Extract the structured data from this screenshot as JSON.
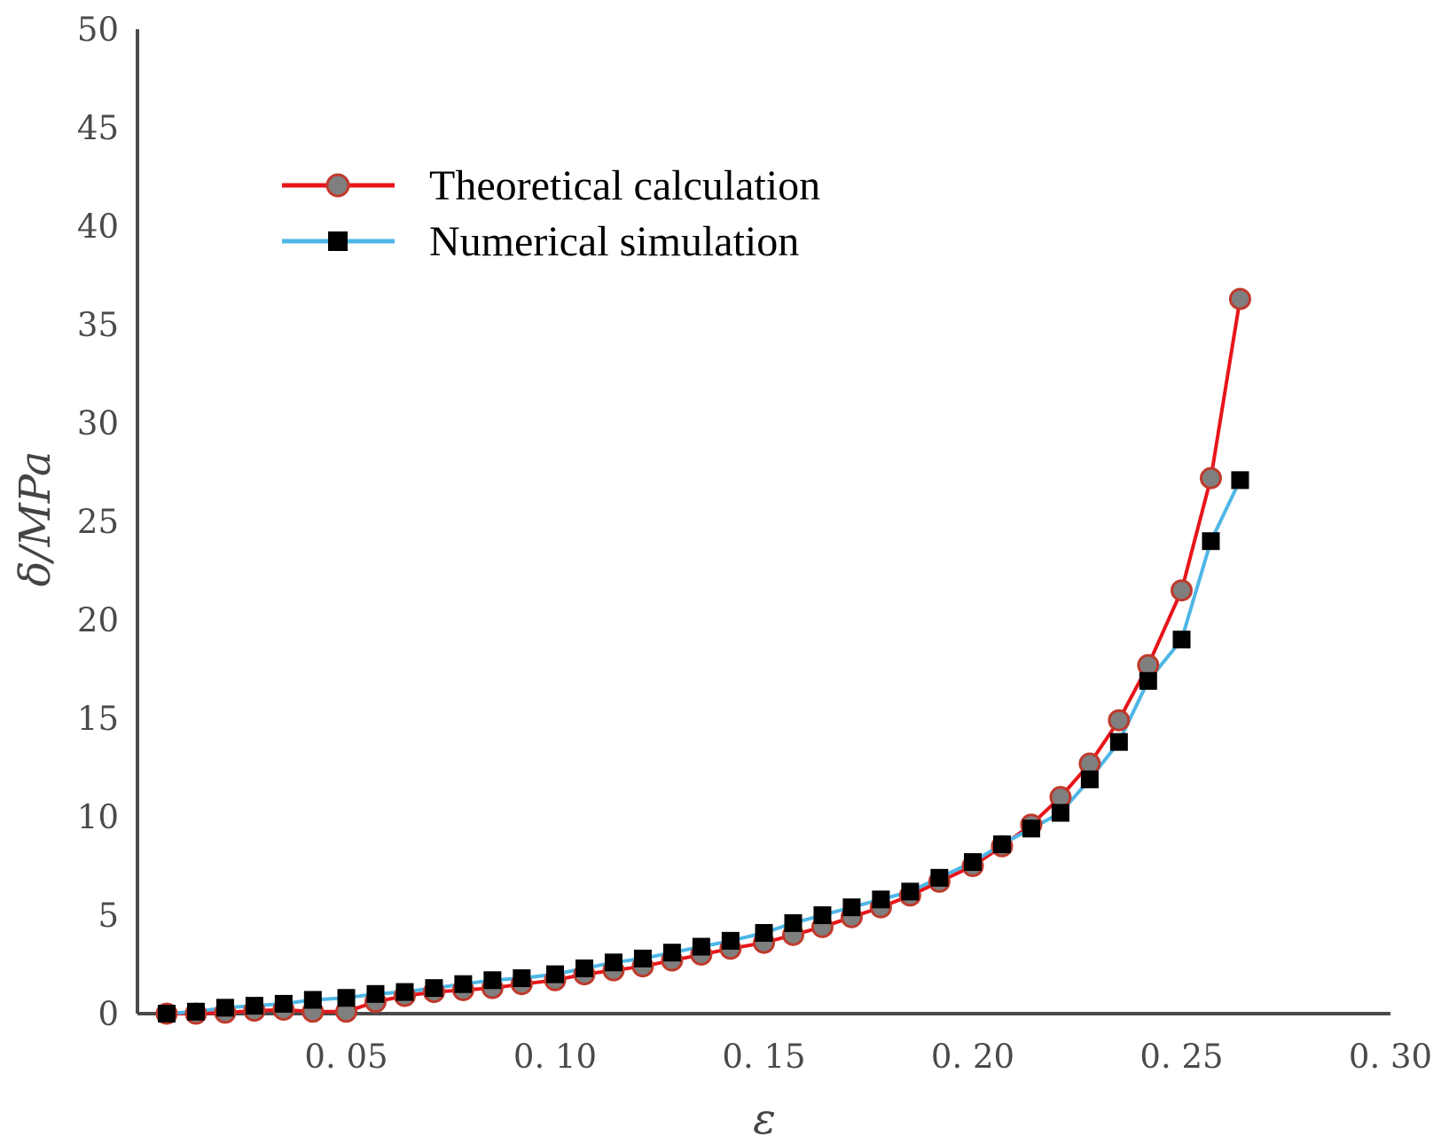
{
  "chart_data": {
    "type": "line",
    "title": "",
    "xlabel": "ε",
    "ylabel": "δ/MPa",
    "xlim": [
      0.0,
      0.3
    ],
    "ylim": [
      0,
      50
    ],
    "grid": false,
    "legend_position": "top-left",
    "x_ticks": [
      {
        "value": 0.05,
        "label": "0. 05"
      },
      {
        "value": 0.1,
        "label": "0. 10"
      },
      {
        "value": 0.15,
        "label": "0. 15"
      },
      {
        "value": 0.2,
        "label": "0. 20"
      },
      {
        "value": 0.25,
        "label": "0. 25"
      },
      {
        "value": 0.3,
        "label": "0. 30"
      }
    ],
    "y_ticks": [
      {
        "value": 0,
        "label": "0"
      },
      {
        "value": 5,
        "label": "5"
      },
      {
        "value": 10,
        "label": "10"
      },
      {
        "value": 15,
        "label": "15"
      },
      {
        "value": 20,
        "label": "20"
      },
      {
        "value": 25,
        "label": "25"
      },
      {
        "value": 30,
        "label": "30"
      },
      {
        "value": 35,
        "label": "35"
      },
      {
        "value": 40,
        "label": "40"
      },
      {
        "value": 45,
        "label": "45"
      },
      {
        "value": 50,
        "label": "50"
      }
    ],
    "series": [
      {
        "name": "Theoretical calculation",
        "line_color": "#e8141a",
        "marker": "circle",
        "marker_fill": "#7f7f7f",
        "marker_stroke": "#c0392b",
        "x": [
          0.007,
          0.014,
          0.021,
          0.028,
          0.035,
          0.042,
          0.05,
          0.057,
          0.064,
          0.071,
          0.078,
          0.085,
          0.092,
          0.1,
          0.107,
          0.114,
          0.121,
          0.128,
          0.135,
          0.142,
          0.15,
          0.157,
          0.164,
          0.171,
          0.178,
          0.185,
          0.192,
          0.2,
          0.207,
          0.214,
          0.221,
          0.228,
          0.235,
          0.242,
          0.25,
          0.257,
          0.264
        ],
        "values": [
          0.0,
          0.0,
          0.05,
          0.15,
          0.2,
          0.1,
          0.1,
          0.6,
          0.9,
          1.1,
          1.2,
          1.3,
          1.5,
          1.7,
          2.0,
          2.2,
          2.4,
          2.7,
          3.0,
          3.3,
          3.6,
          4.0,
          4.4,
          4.9,
          5.4,
          6.0,
          6.7,
          7.5,
          8.5,
          9.6,
          11.0,
          12.7,
          14.9,
          17.7,
          21.5,
          27.2,
          36.3
        ]
      },
      {
        "name": "Numerical simulation",
        "line_color": "#4eb6e6",
        "marker": "square",
        "marker_fill": "#000000",
        "x": [
          0.007,
          0.014,
          0.021,
          0.028,
          0.035,
          0.042,
          0.05,
          0.057,
          0.064,
          0.071,
          0.078,
          0.085,
          0.092,
          0.1,
          0.107,
          0.114,
          0.121,
          0.128,
          0.135,
          0.142,
          0.15,
          0.157,
          0.164,
          0.171,
          0.178,
          0.185,
          0.192,
          0.2,
          0.207,
          0.214,
          0.221,
          0.228,
          0.235,
          0.242,
          0.25,
          0.257,
          0.264
        ],
        "values": [
          0.0,
          0.1,
          0.3,
          0.4,
          0.5,
          0.7,
          0.8,
          1.0,
          1.1,
          1.3,
          1.5,
          1.7,
          1.8,
          2.0,
          2.3,
          2.6,
          2.8,
          3.1,
          3.4,
          3.7,
          4.1,
          4.6,
          5.0,
          5.4,
          5.8,
          6.2,
          6.9,
          7.7,
          8.6,
          9.4,
          10.2,
          11.9,
          13.8,
          16.9,
          19.0,
          24.0,
          27.1
        ]
      }
    ]
  }
}
